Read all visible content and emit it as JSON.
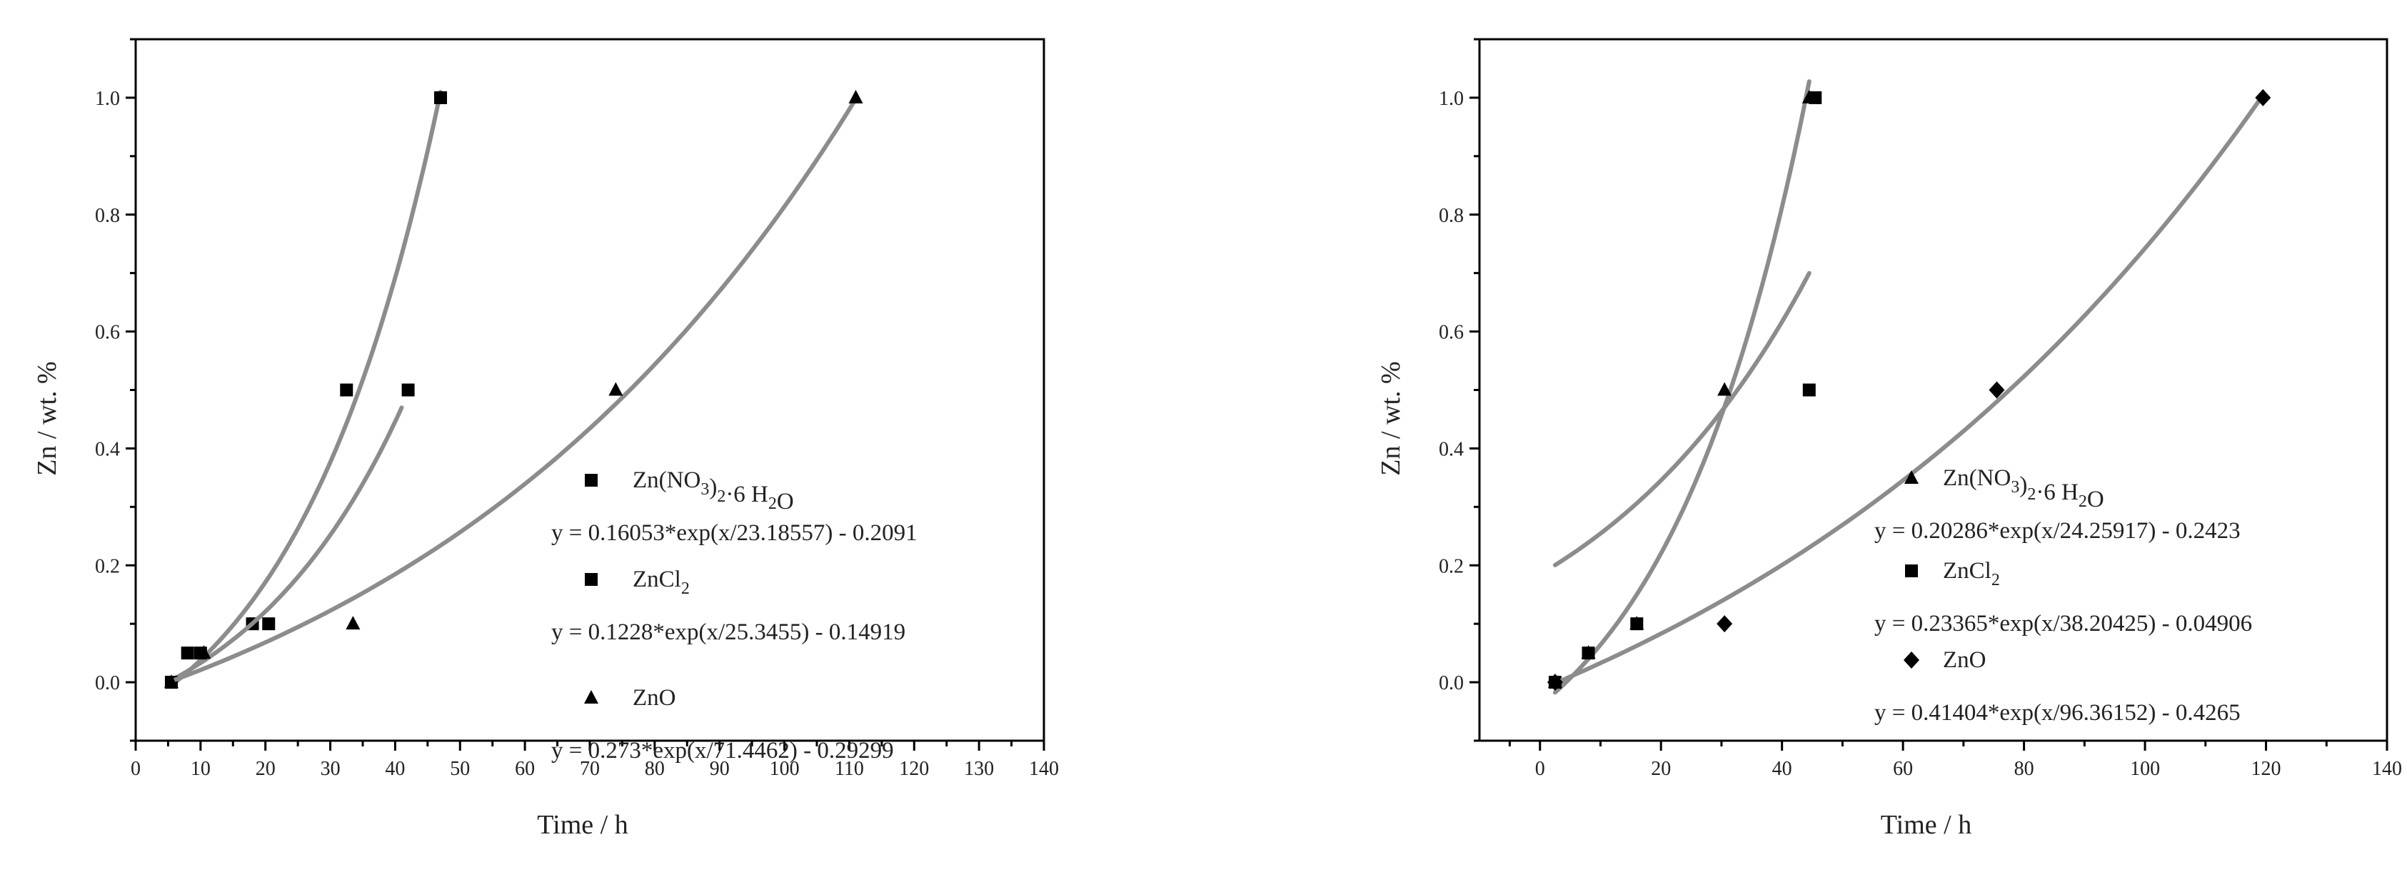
{
  "chart_data": [
    {
      "type": "scatter",
      "xlabel": "Time / h",
      "ylabel": "Zn / wt. %",
      "xlim": [
        0,
        140
      ],
      "ylim": [
        -0.1,
        1.1
      ],
      "xticks": [
        "0",
        "10",
        "20",
        "30",
        "40",
        "50",
        "60",
        "70",
        "80",
        "90",
        "100",
        "110",
        "120",
        "130",
        "140"
      ],
      "yticks": [
        "0.0",
        "0.2",
        "0.4",
        "0.6",
        "0.8",
        "1.0"
      ],
      "series": [
        {
          "name": "Zn(NO3)2·6 H2O",
          "marker": "square",
          "fit_label": "y = 0.16053*exp(x/23.18557) - 0.2091",
          "x": [
            5.5,
            8,
            18,
            32.5,
            47
          ],
          "y": [
            0,
            0.05,
            0.1,
            0.5,
            1.0
          ],
          "fit": {
            "A": 0.16053,
            "t": 23.18557,
            "c": -0.2091,
            "x0": 5.5,
            "x1": 47
          }
        },
        {
          "name": "ZnCl2",
          "marker": "square",
          "fit_label": "y = 0.1228*exp(x/25.3455) - 0.14919",
          "x": [
            5.5,
            10,
            20.5,
            42
          ],
          "y": [
            0,
            0.05,
            0.1,
            0.5
          ],
          "fit": {
            "A": 0.1228,
            "t": 25.3455,
            "c": -0.14919,
            "x0": 5.5,
            "x1": 41
          }
        },
        {
          "name": "ZnO",
          "marker": "triangle",
          "fit_label": "y = 0.273*exp(x/71.4462) - 0.29299",
          "x": [
            5.5,
            10.5,
            33.5,
            74,
            111
          ],
          "y": [
            0,
            0.05,
            0.1,
            0.5,
            1.0
          ],
          "fit": {
            "A": 0.273,
            "t": 71.4462,
            "c": -0.29299,
            "x0": 5.5,
            "x1": 111
          }
        }
      ]
    },
    {
      "type": "scatter",
      "xlabel": "Time / h",
      "ylabel": "Zn / wt. %",
      "xlim": [
        -10,
        140
      ],
      "ylim": [
        -0.1,
        1.1
      ],
      "xticks": [
        "0",
        "20",
        "40",
        "60",
        "80",
        "100",
        "120",
        "140"
      ],
      "yticks": [
        "0.0",
        "0.2",
        "0.4",
        "0.6",
        "0.8",
        "1.0"
      ],
      "series": [
        {
          "name": "Zn(NO3)2·6 H2O",
          "marker": "triangle",
          "fit_label": "y = 0.20286*exp(x/24.25917) - 0.2423",
          "x": [
            2.5,
            8,
            16,
            30.5,
            44.5
          ],
          "y": [
            0,
            0.05,
            0.1,
            0.5,
            1.0
          ],
          "fit": {
            "A": 0.20286,
            "t": 24.25917,
            "c": -0.2423,
            "x0": 2.5,
            "x1": 44.5
          }
        },
        {
          "name": "ZnCl2",
          "marker": "square",
          "fit_label": "y = 0.23365*exp(x/38.20425) - 0.04906",
          "x": [
            2.5,
            8,
            16,
            44.5,
            45.5
          ],
          "y": [
            0,
            0.05,
            0.1,
            0.5,
            1.0
          ],
          "fit": {
            "A": 0.23365,
            "t": 38.20425,
            "c": -0.04906,
            "x0": 2.5,
            "x1": 44.5
          }
        },
        {
          "name": "ZnO",
          "marker": "diamond",
          "fit_label": "y = 0.41404*exp(x/96.36152) - 0.4265",
          "x": [
            2.5,
            30.5,
            75.5,
            119.5
          ],
          "y": [
            0,
            0.1,
            0.5,
            1.0
          ],
          "fit": {
            "A": 0.41404,
            "t": 96.36152,
            "c": -0.4265,
            "x0": 2.5,
            "x1": 119.5
          }
        }
      ]
    }
  ]
}
